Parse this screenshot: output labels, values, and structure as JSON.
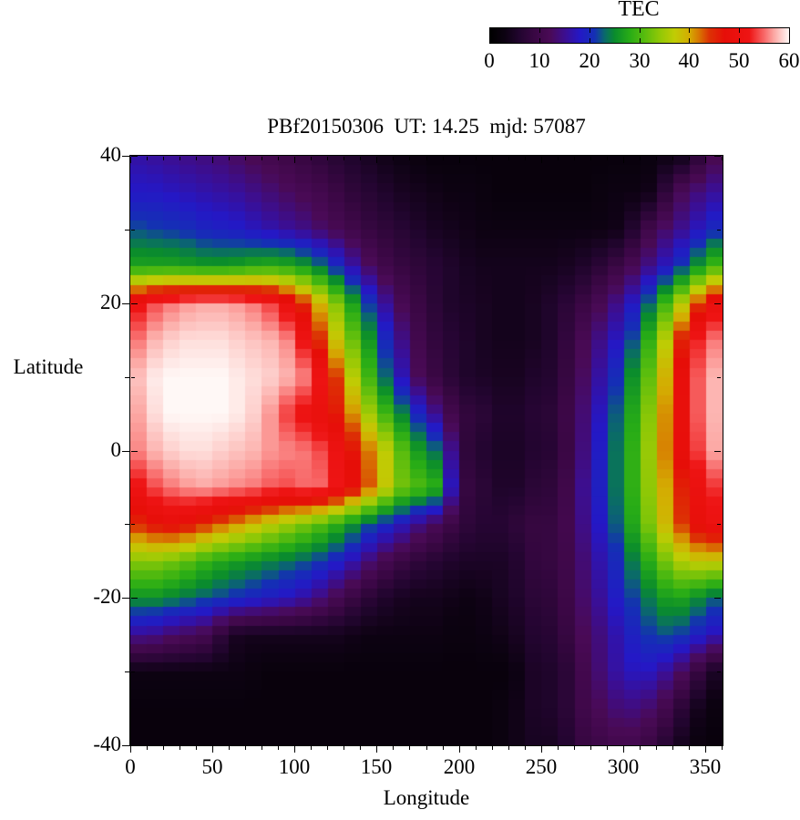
{
  "figure": {
    "title": "PBf20150306  UT: 14.25  mjd: 57087",
    "xlabel": "Longitude",
    "ylabel": "Latitude",
    "colorbar_label": "TEC"
  },
  "chart_data": {
    "type": "heatmap",
    "title": "PBf20150306  UT: 14.25  mjd: 57087",
    "xlabel": "Longitude",
    "ylabel": "Latitude",
    "x_range": [
      0,
      360
    ],
    "y_range": [
      -40,
      40
    ],
    "x_ticks_major": [
      0,
      50,
      100,
      150,
      200,
      250,
      300,
      350
    ],
    "x_ticks_minor_step": 10,
    "y_ticks_major": [
      40,
      20,
      0,
      -20,
      -40
    ],
    "y_ticks_minor": [
      30,
      10,
      -10,
      -30
    ],
    "grid": false,
    "colorbar": {
      "label": "TEC",
      "range": [
        0,
        60
      ],
      "ticks": [
        0,
        10,
        20,
        30,
        40,
        50,
        60
      ],
      "orientation": "horizontal"
    },
    "palette_stops": [
      [
        0,
        "#000000"
      ],
      [
        3,
        "#0d0212"
      ],
      [
        6,
        "#230530"
      ],
      [
        9,
        "#3a0744"
      ],
      [
        12,
        "#4a0a56"
      ],
      [
        15,
        "#3c0e90"
      ],
      [
        18,
        "#2418c6"
      ],
      [
        21,
        "#1430b4"
      ],
      [
        23,
        "#0a6a6a"
      ],
      [
        25,
        "#0a8c2c"
      ],
      [
        28,
        "#28ac16"
      ],
      [
        31,
        "#58bc0e"
      ],
      [
        34,
        "#90c806"
      ],
      [
        37,
        "#c0cc04"
      ],
      [
        40,
        "#d4ac02"
      ],
      [
        42,
        "#d87402"
      ],
      [
        44,
        "#dc3204"
      ],
      [
        47,
        "#e60e08"
      ],
      [
        52,
        "#ee1414"
      ],
      [
        55,
        "#f86868"
      ],
      [
        57,
        "#fca8a4"
      ],
      [
        60,
        "#fff8f6"
      ]
    ],
    "lons": [
      0,
      10,
      20,
      30,
      40,
      50,
      60,
      70,
      80,
      90,
      100,
      110,
      120,
      130,
      140,
      150,
      160,
      170,
      180,
      190,
      200,
      210,
      220,
      230,
      240,
      250,
      260,
      270,
      280,
      290,
      300,
      310,
      320,
      330,
      340,
      350,
      360
    ],
    "lats": [
      40,
      35,
      30,
      25,
      20,
      15,
      10,
      5,
      0,
      -5,
      -10,
      -15,
      -20,
      -25,
      -30,
      -35,
      -40
    ],
    "values": [
      [
        16,
        16,
        15,
        15,
        14,
        14,
        13,
        12,
        11,
        10,
        9,
        8,
        7,
        6,
        5,
        4,
        3,
        3,
        2,
        2,
        2,
        2,
        2,
        2,
        2,
        2,
        2,
        2,
        2,
        2,
        2,
        2,
        3,
        3,
        4,
        10,
        12
      ],
      [
        18,
        18,
        18,
        17,
        17,
        16,
        16,
        15,
        14,
        13,
        12,
        11,
        10,
        8,
        7,
        6,
        5,
        4,
        4,
        3,
        3,
        3,
        2,
        2,
        2,
        2,
        2,
        2,
        2,
        3,
        3,
        3,
        4,
        11,
        13,
        15,
        16
      ],
      [
        22,
        22,
        21,
        21,
        20,
        19,
        19,
        18,
        17,
        16,
        15,
        14,
        12,
        11,
        9,
        8,
        7,
        6,
        5,
        4,
        4,
        3,
        3,
        3,
        3,
        3,
        3,
        3,
        3,
        3,
        4,
        8,
        12,
        14,
        16,
        19,
        21
      ],
      [
        27,
        27,
        27,
        27,
        26,
        26,
        26,
        27,
        28,
        28,
        27,
        25,
        22,
        18,
        14,
        11,
        9,
        8,
        7,
        6,
        5,
        4,
        4,
        4,
        4,
        4,
        4,
        5,
        6,
        8,
        10,
        13,
        16,
        19,
        23,
        28,
        31
      ],
      [
        50,
        53,
        55,
        56,
        57,
        57,
        57,
        56,
        55,
        52,
        48,
        42,
        37,
        30,
        24,
        18,
        13,
        10,
        8,
        6,
        5,
        5,
        4,
        4,
        4,
        5,
        6,
        8,
        10,
        13,
        16,
        20,
        26,
        33,
        40,
        48,
        51
      ],
      [
        54,
        57,
        58,
        59,
        59,
        59,
        59,
        58,
        58,
        57,
        55,
        48,
        41,
        35,
        29,
        23,
        17,
        12,
        9,
        7,
        6,
        5,
        4,
        4,
        4,
        5,
        6,
        10,
        13,
        16,
        19,
        25,
        32,
        41,
        50,
        55,
        56
      ],
      [
        57,
        59,
        60,
        60,
        60,
        60,
        60,
        59,
        59,
        58,
        57,
        55,
        48,
        40,
        33,
        26,
        20,
        14,
        10,
        8,
        6,
        5,
        5,
        4,
        5,
        6,
        6,
        11,
        14,
        18,
        23,
        28,
        35,
        44,
        52,
        57,
        58
      ],
      [
        56,
        58,
        60,
        60,
        60,
        60,
        60,
        59,
        58,
        55,
        52,
        50,
        48,
        44,
        38,
        32,
        27,
        22,
        17,
        13,
        8,
        8,
        6,
        5,
        6,
        7,
        7,
        12,
        15,
        20,
        25,
        30,
        37,
        45,
        52,
        57,
        58
      ],
      [
        55,
        57,
        58,
        59,
        59,
        59,
        58,
        58,
        57,
        56,
        56,
        55,
        53,
        49,
        44,
        40,
        34,
        28,
        25,
        22,
        8,
        7,
        5,
        5,
        5,
        7,
        6,
        12,
        16,
        21,
        26,
        31,
        38,
        45,
        51,
        56,
        58
      ],
      [
        50,
        53,
        55,
        56,
        57,
        57,
        56,
        56,
        55,
        54,
        54,
        56,
        54,
        50,
        46,
        40,
        35,
        30,
        31,
        26,
        9,
        8,
        6,
        5,
        6,
        8,
        7,
        13,
        17,
        21,
        26,
        31,
        37,
        43,
        48,
        52,
        54
      ],
      [
        44,
        46,
        48,
        48,
        46,
        44,
        42,
        40,
        38,
        36,
        34,
        32,
        30,
        27,
        24,
        21,
        19,
        16,
        13,
        11,
        8,
        7,
        6,
        7,
        8,
        9,
        8,
        13,
        16,
        20,
        25,
        30,
        36,
        42,
        46,
        50,
        51
      ],
      [
        33,
        34,
        33,
        32,
        30,
        28,
        27,
        26,
        25,
        24,
        23,
        22,
        20,
        18,
        15,
        12,
        10,
        8,
        7,
        6,
        5,
        5,
        5,
        5,
        7,
        9,
        8,
        12,
        15,
        18,
        22,
        26,
        30,
        35,
        37,
        38,
        37
      ],
      [
        25,
        26,
        25,
        24,
        23,
        22,
        21,
        20,
        19,
        18,
        17,
        15,
        13,
        10,
        8,
        6,
        5,
        4,
        4,
        4,
        3,
        3,
        4,
        5,
        6,
        8,
        7,
        12,
        14,
        17,
        20,
        23,
        25,
        28,
        26,
        24,
        22
      ],
      [
        15,
        15,
        14,
        12,
        12,
        10,
        5,
        4,
        4,
        4,
        4,
        4,
        4,
        4,
        3,
        3,
        3,
        3,
        3,
        3,
        2,
        3,
        3,
        4,
        5,
        7,
        6,
        11,
        13,
        15,
        18,
        20,
        22,
        22,
        20,
        18,
        16
      ],
      [
        3,
        3,
        3,
        3,
        3,
        3,
        3,
        3,
        2,
        2,
        2,
        2,
        2,
        2,
        2,
        2,
        2,
        2,
        2,
        2,
        2,
        2,
        2,
        2,
        4,
        6,
        5,
        9,
        12,
        15,
        17,
        18,
        17,
        14,
        11,
        6,
        4
      ],
      [
        2,
        2,
        2,
        2,
        2,
        2,
        2,
        2,
        2,
        2,
        2,
        2,
        2,
        2,
        2,
        2,
        2,
        2,
        2,
        2,
        2,
        2,
        2,
        3,
        4,
        6,
        5,
        9,
        11,
        13,
        14,
        14,
        12,
        9,
        5,
        3,
        2
      ],
      [
        2,
        2,
        2,
        2,
        2,
        2,
        2,
        2,
        2,
        2,
        2,
        2,
        2,
        2,
        2,
        2,
        2,
        2,
        2,
        2,
        2,
        2,
        2,
        3,
        4,
        5,
        4,
        8,
        9,
        10,
        11,
        10,
        8,
        5,
        3,
        2,
        2
      ]
    ]
  }
}
